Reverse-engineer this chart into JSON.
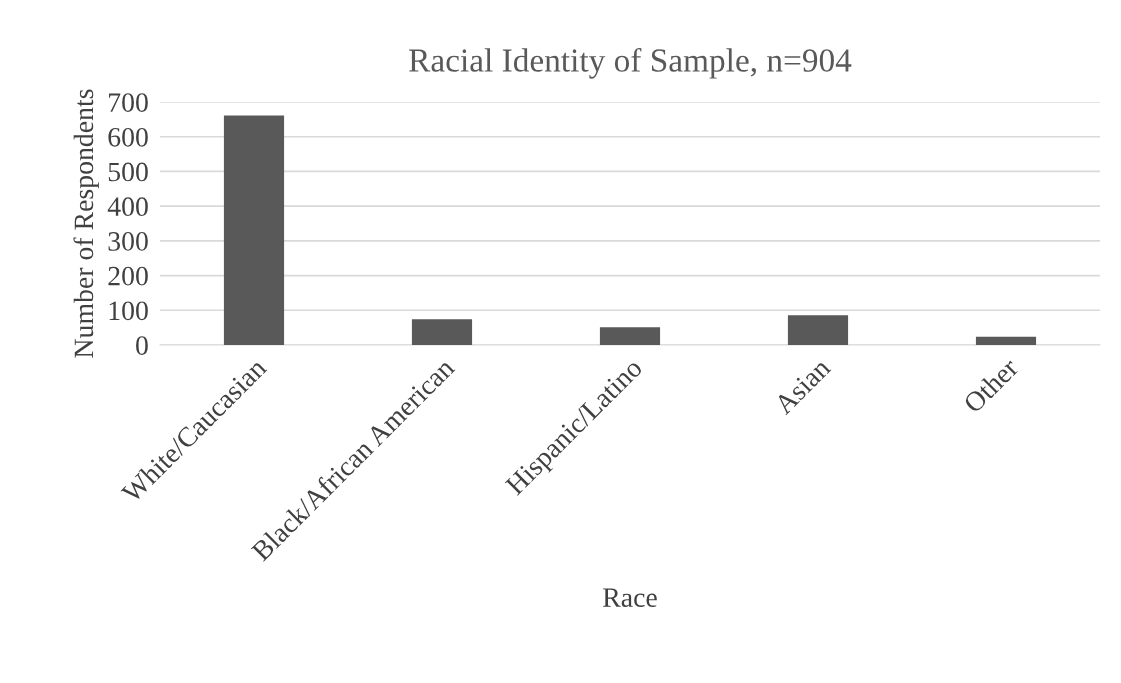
{
  "chart_data": {
    "type": "bar",
    "title": "Racial Identity of Sample, n=904",
    "xlabel": "Race",
    "ylabel": "Number of Respondents",
    "categories": [
      "White/Caucasian",
      "Black/African American",
      "Hispanic/Latino",
      "Asian",
      "Other"
    ],
    "values": [
      661,
      74,
      51,
      86,
      24
    ],
    "color": "#595959",
    "ylim": [
      0,
      700
    ],
    "yticks": [
      0,
      100,
      200,
      300,
      400,
      500,
      600,
      700
    ],
    "grid": "y",
    "legend": false
  }
}
